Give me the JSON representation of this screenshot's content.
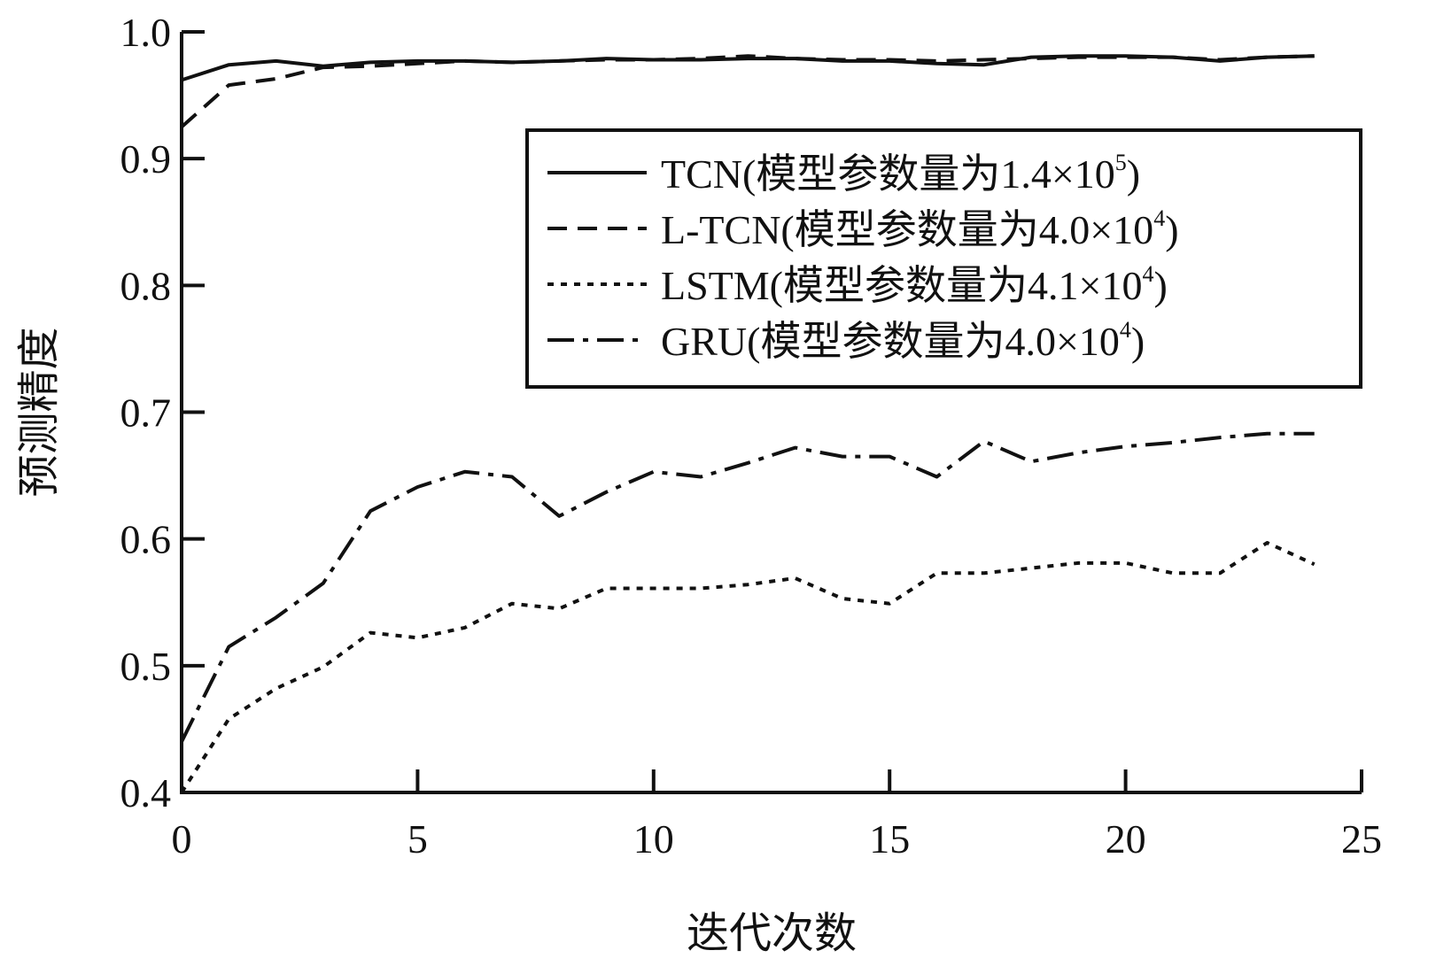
{
  "chart_data": {
    "type": "line",
    "xlabel": "迭代次数",
    "ylabel": "预测精度",
    "xlim": [
      0,
      25
    ],
    "ylim": [
      0.4,
      1.0
    ],
    "x_ticks": [
      0,
      5,
      10,
      15,
      20,
      25
    ],
    "y_ticks": [
      0.4,
      0.5,
      0.6,
      0.7,
      0.8,
      0.9,
      1.0
    ],
    "x_tick_labels": [
      "0",
      "5",
      "10",
      "15",
      "20",
      "25"
    ],
    "y_tick_labels": [
      "0.4",
      "0.5",
      "0.6",
      "0.7",
      "0.8",
      "0.9",
      "1.0"
    ],
    "grid": false,
    "legend_position": "right",
    "x": [
      0,
      1,
      2,
      3,
      4,
      5,
      6,
      7,
      8,
      9,
      10,
      11,
      12,
      13,
      14,
      15,
      16,
      17,
      18,
      19,
      20,
      21,
      22,
      23,
      24
    ],
    "series": [
      {
        "name": "TCN(模型参数量为1.4×10",
        "name_sup": "5",
        "name_close": ")",
        "dash": "solid",
        "values": [
          0.962,
          0.974,
          0.977,
          0.973,
          0.976,
          0.977,
          0.977,
          0.976,
          0.977,
          0.979,
          0.978,
          0.978,
          0.979,
          0.979,
          0.977,
          0.977,
          0.975,
          0.974,
          0.98,
          0.981,
          0.981,
          0.98,
          0.977,
          0.98,
          0.981
        ]
      },
      {
        "name": "L-TCN(模型参数量为4.0×10",
        "name_sup": "4",
        "name_close": ")",
        "dash": "dashed",
        "values": [
          0.925,
          0.958,
          0.963,
          0.972,
          0.973,
          0.975,
          0.977,
          0.976,
          0.977,
          0.978,
          0.978,
          0.979,
          0.981,
          0.979,
          0.978,
          0.978,
          0.977,
          0.978,
          0.979,
          0.98,
          0.98,
          0.98,
          0.978,
          0.98,
          0.981
        ]
      },
      {
        "name": "LSTM(模型参数量为4.1×10",
        "name_sup": "4",
        "name_close": ")",
        "dash": "dotted",
        "values": [
          0.4,
          0.458,
          0.482,
          0.499,
          0.526,
          0.522,
          0.53,
          0.549,
          0.545,
          0.561,
          0.561,
          0.561,
          0.564,
          0.569,
          0.553,
          0.549,
          0.573,
          0.573,
          0.577,
          0.581,
          0.581,
          0.573,
          0.573,
          0.597,
          0.58
        ]
      },
      {
        "name": "GRU(模型参数量为4.0×10",
        "name_sup": "4",
        "name_close": ")",
        "dash": "dashdot",
        "values": [
          0.44,
          0.515,
          0.538,
          0.565,
          0.622,
          0.641,
          0.653,
          0.649,
          0.618,
          0.637,
          0.653,
          0.649,
          0.66,
          0.672,
          0.665,
          0.665,
          0.649,
          0.677,
          0.661,
          0.668,
          0.673,
          0.676,
          0.68,
          0.683,
          0.683
        ]
      }
    ]
  }
}
